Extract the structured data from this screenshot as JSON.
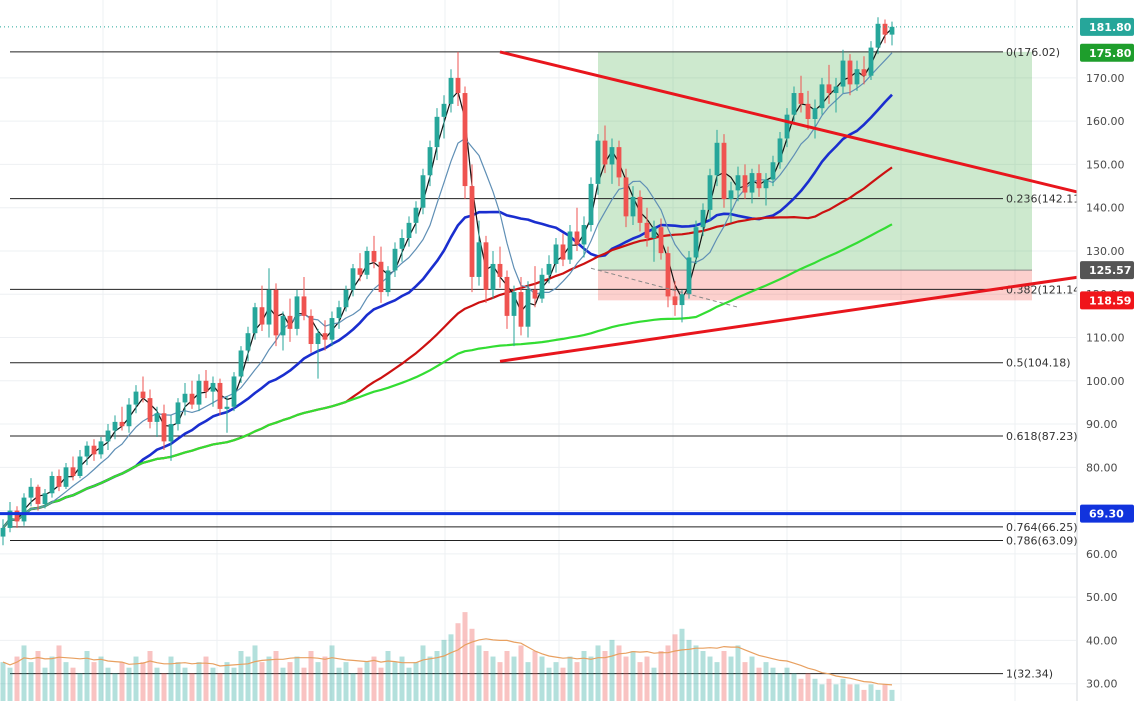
{
  "chart_data": {
    "type": "candlestick",
    "y_axis": {
      "ylim": [
        26,
        188
      ],
      "ticks": [
        30,
        40,
        50,
        60,
        70,
        80,
        90,
        100,
        110,
        120,
        130,
        140,
        150,
        160,
        170
      ],
      "tick_labels": [
        "30.00",
        "40.00",
        "50.00",
        "60.00",
        "70.00",
        "80.00",
        "90.00",
        "100.00",
        "110.00",
        "120.00",
        "130.00",
        "140.00",
        "150.00",
        "160.00",
        "170.00"
      ],
      "grid": true
    },
    "price_tags": [
      {
        "value": 181.8,
        "label": "181.80",
        "color": "#26a69a"
      },
      {
        "value": 175.8,
        "label": "175.80",
        "color": "#1e9e2c"
      },
      {
        "value": 125.57,
        "label": "125.57",
        "color": "#555555"
      },
      {
        "value": 118.59,
        "label": "118.59",
        "color": "#f0151a"
      },
      {
        "value": 69.3,
        "label": "69.30",
        "color": "#1133dd"
      }
    ],
    "fib_levels": [
      {
        "ratio": "0",
        "value": 176.02,
        "label": "0(176.02)"
      },
      {
        "ratio": "0.236",
        "value": 142.11,
        "label": "0.236(142.11"
      },
      {
        "ratio": "0.382",
        "value": 121.14,
        "label": "0.382(121.14"
      },
      {
        "ratio": "0.5",
        "value": 104.18,
        "label": "0.5(104.18)"
      },
      {
        "ratio": "0.618",
        "value": 87.23,
        "label": "0.618(87.23)"
      },
      {
        "ratio": "0.764",
        "value": 66.25,
        "label": "0.764(66.25)"
      },
      {
        "ratio": "0.786",
        "value": 63.09,
        "label": "0.786(63.09)"
      },
      {
        "ratio": "1",
        "value": 32.34,
        "label": "1(32.34)"
      }
    ],
    "horizontal_line": {
      "value": 69.3,
      "color": "#1133dd"
    },
    "candles": [
      [
        64.0,
        68.0,
        62.0,
        66.0
      ],
      [
        66.0,
        72.0,
        65.0,
        70.0
      ],
      [
        70.0,
        71.0,
        66.0,
        67.5
      ],
      [
        67.5,
        74.0,
        66.5,
        73.0
      ],
      [
        73.0,
        77.5,
        71.0,
        75.5
      ],
      [
        75.5,
        76.0,
        70.0,
        71.5
      ],
      [
        71.5,
        75.0,
        70.5,
        74.0
      ],
      [
        74.0,
        79.0,
        73.0,
        78.0
      ],
      [
        78.0,
        79.5,
        74.5,
        75.5
      ],
      [
        75.5,
        81.0,
        75.0,
        80.0
      ],
      [
        80.0,
        82.5,
        77.0,
        78.0
      ],
      [
        78.0,
        84.0,
        77.5,
        82.5
      ],
      [
        82.5,
        86.0,
        80.5,
        85.0
      ],
      [
        85.0,
        86.5,
        81.5,
        83.0
      ],
      [
        83.0,
        87.0,
        82.0,
        86.0
      ],
      [
        86.0,
        90.0,
        84.0,
        88.5
      ],
      [
        88.5,
        92.0,
        86.5,
        90.5
      ],
      [
        90.5,
        94.0,
        88.5,
        89.5
      ],
      [
        89.5,
        96.0,
        88.0,
        94.5
      ],
      [
        94.5,
        99.0,
        92.5,
        97.5
      ],
      [
        97.5,
        101.0,
        95.0,
        96.0
      ],
      [
        96.0,
        98.0,
        89.0,
        90.5
      ],
      [
        90.5,
        94.0,
        87.0,
        92.5
      ],
      [
        92.5,
        94.5,
        84.0,
        86.0
      ],
      [
        86.0,
        92.0,
        81.5,
        90.0
      ],
      [
        90.0,
        96.0,
        88.5,
        95.0
      ],
      [
        95.0,
        99.5,
        92.0,
        97.0
      ],
      [
        97.0,
        100.0,
        93.5,
        94.5
      ],
      [
        94.5,
        101.5,
        93.0,
        100.0
      ],
      [
        100.0,
        102.5,
        96.0,
        97.5
      ],
      [
        97.5,
        101.0,
        94.0,
        99.5
      ],
      [
        99.5,
        100.5,
        92.0,
        93.5
      ],
      [
        93.5,
        96.5,
        88.0,
        94.0
      ],
      [
        94.0,
        102.0,
        93.0,
        101.0
      ],
      [
        101.0,
        108.0,
        99.5,
        107.0
      ],
      [
        107.0,
        112.5,
        104.5,
        111.0
      ],
      [
        111.0,
        118.0,
        109.5,
        117.0
      ],
      [
        117.0,
        122.0,
        111.5,
        113.0
      ],
      [
        113.0,
        126.0,
        110.0,
        121.0
      ],
      [
        121.0,
        122.5,
        108.0,
        110.5
      ],
      [
        110.5,
        116.0,
        107.0,
        115.0
      ],
      [
        115.0,
        119.0,
        109.0,
        112.0
      ],
      [
        112.0,
        121.0,
        110.5,
        119.5
      ],
      [
        119.5,
        124.0,
        114.0,
        115.0
      ],
      [
        115.0,
        116.5,
        106.5,
        108.5
      ],
      [
        108.5,
        112.0,
        100.5,
        111.0
      ],
      [
        111.0,
        114.0,
        107.0,
        109.5
      ],
      [
        109.5,
        116.0,
        108.0,
        114.5
      ],
      [
        114.5,
        118.5,
        112.0,
        117.0
      ],
      [
        117.0,
        122.0,
        116.0,
        121.0
      ],
      [
        121.0,
        127.0,
        119.5,
        126.0
      ],
      [
        126.0,
        129.5,
        123.0,
        124.5
      ],
      [
        124.5,
        131.0,
        123.5,
        130.0
      ],
      [
        130.0,
        133.5,
        126.0,
        127.5
      ],
      [
        127.5,
        131.0,
        118.0,
        120.5
      ],
      [
        120.5,
        126.5,
        119.5,
        125.5
      ],
      [
        125.5,
        132.0,
        124.0,
        130.5
      ],
      [
        130.5,
        135.0,
        127.5,
        133.0
      ],
      [
        133.0,
        138.0,
        131.0,
        136.5
      ],
      [
        136.5,
        141.5,
        134.0,
        140.0
      ],
      [
        140.0,
        149.0,
        138.5,
        147.5
      ],
      [
        147.5,
        155.5,
        145.0,
        154.0
      ],
      [
        154.0,
        163.0,
        151.0,
        161.0
      ],
      [
        161.0,
        166.0,
        156.0,
        164.0
      ],
      [
        164.0,
        172.0,
        162.0,
        170.0
      ],
      [
        170.0,
        176.0,
        163.5,
        166.5
      ],
      [
        166.5,
        168.0,
        142.0,
        145.0
      ],
      [
        145.0,
        150.0,
        120.5,
        124.0
      ],
      [
        124.0,
        137.0,
        122.0,
        132.0
      ],
      [
        132.0,
        133.5,
        118.0,
        121.0
      ],
      [
        121.0,
        130.0,
        119.0,
        127.0
      ],
      [
        127.0,
        131.0,
        121.5,
        124.0
      ],
      [
        124.0,
        125.5,
        112.0,
        115.0
      ],
      [
        115.0,
        122.0,
        108.0,
        120.5
      ],
      [
        120.5,
        124.0,
        110.5,
        112.5
      ],
      [
        112.5,
        123.0,
        110.0,
        121.0
      ],
      [
        121.0,
        126.5,
        117.0,
        119.0
      ],
      [
        119.0,
        126.0,
        118.0,
        124.5
      ],
      [
        124.5,
        129.0,
        122.5,
        127.0
      ],
      [
        127.0,
        133.0,
        125.0,
        131.5
      ],
      [
        131.5,
        134.0,
        126.5,
        128.0
      ],
      [
        128.0,
        136.0,
        127.0,
        134.5
      ],
      [
        134.5,
        140.0,
        130.0,
        131.5
      ],
      [
        131.5,
        138.0,
        128.5,
        136.0
      ],
      [
        136.0,
        147.0,
        134.5,
        145.5
      ],
      [
        145.5,
        157.0,
        143.0,
        155.5
      ],
      [
        155.5,
        159.0,
        148.0,
        150.0
      ],
      [
        150.0,
        156.0,
        145.5,
        154.0
      ],
      [
        154.0,
        155.5,
        145.0,
        147.0
      ],
      [
        147.0,
        149.0,
        135.5,
        138.0
      ],
      [
        138.0,
        145.0,
        136.0,
        142.5
      ],
      [
        142.5,
        144.0,
        134.5,
        136.5
      ],
      [
        136.5,
        140.0,
        131.0,
        133.0
      ],
      [
        133.0,
        137.0,
        127.5,
        135.5
      ],
      [
        135.5,
        137.5,
        128.0,
        129.5
      ],
      [
        129.5,
        131.0,
        117.0,
        119.5
      ],
      [
        119.5,
        123.0,
        115.0,
        117.5
      ],
      [
        117.5,
        121.0,
        113.5,
        120.0
      ],
      [
        120.0,
        130.0,
        119.0,
        128.5
      ],
      [
        128.5,
        137.0,
        127.0,
        135.5
      ],
      [
        135.5,
        141.0,
        133.5,
        139.5
      ],
      [
        139.5,
        149.0,
        137.0,
        147.5
      ],
      [
        147.5,
        158.0,
        145.0,
        155.0
      ],
      [
        155.0,
        157.0,
        140.0,
        142.0
      ],
      [
        142.0,
        146.0,
        136.5,
        144.0
      ],
      [
        144.0,
        149.5,
        141.5,
        147.5
      ],
      [
        147.5,
        150.0,
        142.0,
        143.5
      ],
      [
        143.5,
        149.0,
        141.0,
        148.0
      ],
      [
        148.0,
        150.0,
        142.5,
        144.5
      ],
      [
        144.5,
        148.0,
        140.5,
        146.5
      ],
      [
        146.5,
        152.0,
        145.0,
        150.5
      ],
      [
        150.5,
        157.5,
        149.0,
        156.0
      ],
      [
        156.0,
        163.0,
        154.0,
        161.5
      ],
      [
        161.5,
        168.0,
        159.5,
        166.5
      ],
      [
        166.5,
        170.5,
        162.0,
        164.0
      ],
      [
        164.0,
        167.0,
        158.0,
        160.5
      ],
      [
        160.5,
        165.0,
        156.0,
        163.0
      ],
      [
        163.0,
        170.0,
        161.5,
        168.5
      ],
      [
        168.5,
        173.0,
        164.0,
        166.5
      ],
      [
        166.5,
        170.0,
        162.0,
        168.0
      ],
      [
        168.0,
        176.5,
        166.5,
        174.0
      ],
      [
        174.0,
        175.5,
        166.0,
        168.5
      ],
      [
        168.5,
        174.0,
        167.0,
        172.0
      ],
      [
        172.0,
        175.0,
        168.5,
        170.5
      ],
      [
        170.5,
        178.5,
        169.5,
        177.0
      ],
      [
        177.0,
        184.0,
        175.5,
        182.5
      ],
      [
        182.5,
        183.5,
        178.0,
        180.0
      ],
      [
        180.0,
        183.0,
        177.5,
        181.8
      ]
    ],
    "moving_averages": [
      {
        "name": "",
        "color": "#1a2ecf",
        "width": 2.6,
        "period": 20
      },
      {
        "name": "",
        "color": "#cc1111",
        "width": 2.2,
        "period": 50
      },
      {
        "name": "",
        "color": "#33dd33",
        "width": 2.2,
        "period": 100
      },
      {
        "name": "",
        "color": "#111111",
        "width": 1.2,
        "period": 3
      },
      {
        "name": "",
        "color": "#5f8fb5",
        "width": 1.2,
        "period": 8
      }
    ],
    "trendlines": [
      {
        "from": [
          71,
          176.0
        ],
        "to": [
          192,
          128.5
        ],
        "color": "#e8161d"
      },
      {
        "from": [
          71,
          104.5
        ],
        "to": [
          192,
          133.0
        ],
        "color": "#e8161d"
      }
    ],
    "target_zone": {
      "from_index": 85,
      "to_index": 147,
      "high": 176.02,
      "low": 125.57
    },
    "stop_zone": {
      "from_index": 85,
      "to_index": 147,
      "high": 125.57,
      "low": 118.59
    },
    "dashed_line": {
      "from": [
        84,
        126.0
      ],
      "to": [
        105,
        117.0
      ]
    },
    "volume": {
      "values": [
        7,
        6,
        8,
        10,
        7,
        9,
        6,
        8,
        10,
        7,
        6,
        5,
        9,
        7,
        8,
        6,
        5,
        7,
        6,
        8,
        7,
        9,
        6,
        5,
        8,
        7,
        6,
        5,
        7,
        8,
        6,
        5,
        7,
        6,
        9,
        8,
        10,
        7,
        8,
        9,
        6,
        7,
        8,
        6,
        9,
        7,
        8,
        10,
        6,
        7,
        5,
        6,
        7,
        8,
        6,
        9,
        7,
        8,
        6,
        7,
        10,
        8,
        9,
        11,
        12,
        14,
        16,
        13,
        10,
        9,
        8,
        7,
        9,
        8,
        10,
        7,
        9,
        8,
        6,
        7,
        6,
        8,
        7,
        9,
        8,
        10,
        9,
        11,
        10,
        8,
        9,
        7,
        8,
        6,
        9,
        10,
        12,
        13,
        11,
        10,
        9,
        8,
        7,
        9,
        8,
        10,
        7,
        8,
        6,
        7,
        6,
        5,
        6,
        5,
        4,
        5,
        4,
        3,
        4,
        3,
        4,
        3,
        3,
        2,
        3,
        2,
        3,
        2
      ],
      "ma_color": "#e8a060"
    }
  }
}
